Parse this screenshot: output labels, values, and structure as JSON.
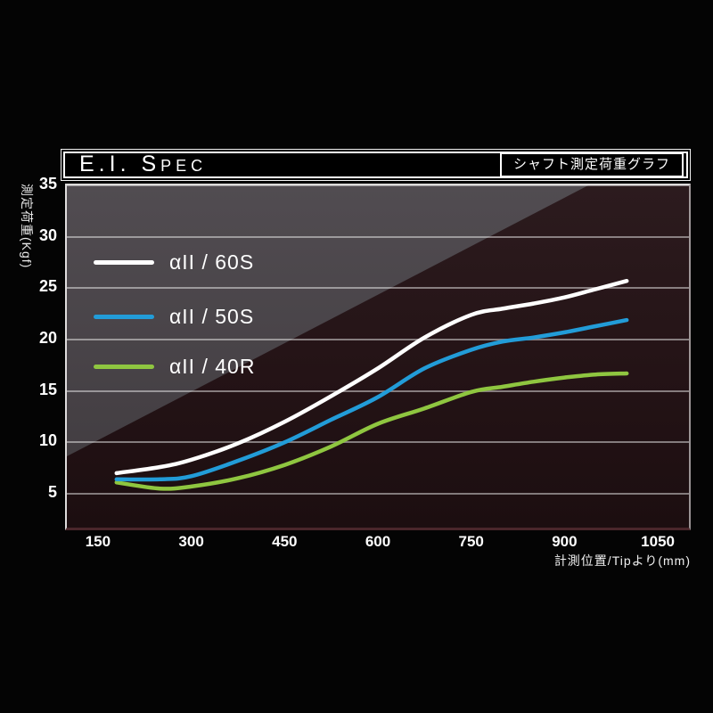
{
  "chart_data": {
    "type": "line",
    "title": "E.I. Spec",
    "subtitle": "シャフト測定荷重グラフ",
    "xlabel": "計測位置/Tipより(mm)",
    "ylabel": "測定荷重(Kgf)",
    "xlim": [
      100,
      1100
    ],
    "ylim": [
      1.7,
      35
    ],
    "xticks": [
      150,
      300,
      450,
      600,
      750,
      900,
      1050
    ],
    "yticks": [
      5,
      10,
      15,
      20,
      25,
      30,
      35
    ],
    "grid": true,
    "legend_position": "upper-left-inside",
    "x_mm": [
      180,
      250,
      300,
      375,
      450,
      525,
      600,
      675,
      750,
      800,
      850,
      900,
      950,
      1000
    ],
    "series": [
      {
        "name": "αII / 60S",
        "color": "#ffffff",
        "values": [
          7.0,
          7.6,
          8.3,
          9.9,
          12.0,
          14.5,
          17.2,
          20.2,
          22.4,
          23.0,
          23.5,
          24.1,
          24.9,
          25.7
        ]
      },
      {
        "name": "αII / 50S",
        "color": "#229cd8",
        "values": [
          6.4,
          6.4,
          6.7,
          8.2,
          10.0,
          12.2,
          14.4,
          17.2,
          19.0,
          19.8,
          20.2,
          20.7,
          21.3,
          21.9
        ]
      },
      {
        "name": "αII / 40R",
        "color": "#8fc640",
        "values": [
          6.1,
          5.5,
          5.7,
          6.5,
          7.8,
          9.6,
          11.8,
          13.3,
          14.9,
          15.4,
          15.9,
          16.3,
          16.6,
          16.7
        ]
      }
    ]
  },
  "colors": {
    "plot_light": "#4b474c",
    "plot_dark": "#221216",
    "axis_maroon": "#4a262b",
    "accent_blue": "#229cd8",
    "accent_green": "#8fc640"
  }
}
